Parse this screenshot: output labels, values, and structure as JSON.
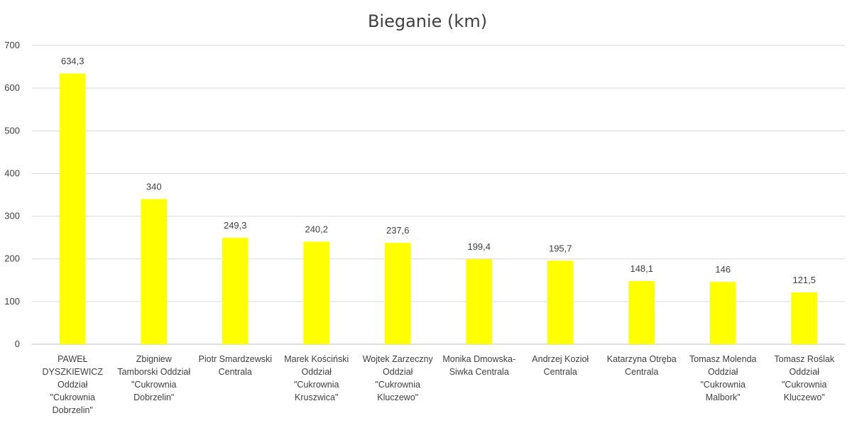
{
  "chart_data": {
    "type": "bar",
    "title": "Bieganie (km)",
    "xlabel": "",
    "ylabel": "",
    "ylim": [
      0,
      700
    ],
    "yticks": [
      0,
      100,
      200,
      300,
      400,
      500,
      600,
      700
    ],
    "grid": true,
    "legend": "none",
    "bar_color": "#ffff00",
    "categories": [
      [
        "PAWEŁ",
        "DYSZKIEWICZ",
        "Oddział",
        "\"Cukrownia",
        "Dobrzelin\""
      ],
      [
        "Zbigniew",
        "Tamborski Oddział",
        "\"Cukrownia",
        "Dobrzelin\""
      ],
      [
        "Piotr Smardzewski",
        "Centrala"
      ],
      [
        "Marek Kościński",
        "Oddział",
        "\"Cukrownia",
        "Kruszwica\""
      ],
      [
        "Wojtek Zarzeczny",
        "Oddział",
        "\"Cukrownia",
        "Kluczewo\""
      ],
      [
        "Monika Dmowska-",
        "Siwka Centrala"
      ],
      [
        "Andrzej Kozioł",
        "Centrala"
      ],
      [
        "Katarzyna Otręba",
        "Centrala"
      ],
      [
        "Tomasz Molenda",
        "Oddział",
        "\"Cukrownia",
        "Malbork\""
      ],
      [
        "Tomasz Roślak",
        "Oddział",
        "\"Cukrownia",
        "Kluczewo\""
      ]
    ],
    "values": [
      634.3,
      340,
      249.3,
      240.2,
      237.6,
      199.4,
      195.7,
      148.1,
      146,
      121.5
    ],
    "data_labels": [
      "634,3",
      "340",
      "249,3",
      "240,2",
      "237,6",
      "199,4",
      "195,7",
      "148,1",
      "146",
      "121,5"
    ]
  }
}
